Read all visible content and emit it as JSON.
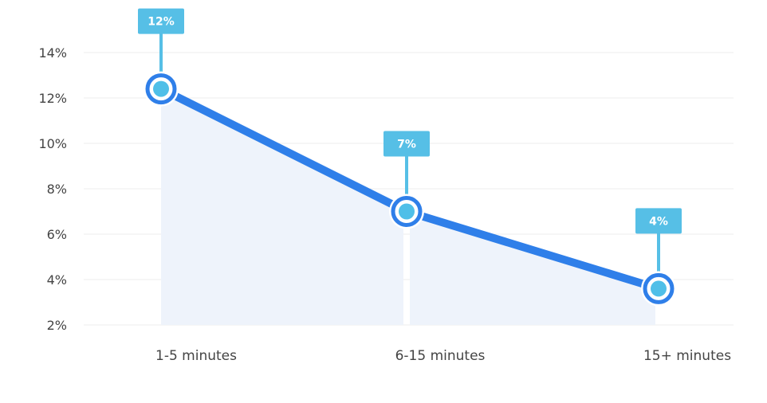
{
  "chart_data": {
    "type": "line",
    "categories": [
      "1-5  minutes",
      "6-15  minutes",
      "15+  minutes"
    ],
    "values": [
      12.4,
      7.0,
      3.6
    ],
    "data_labels": [
      "12%",
      "7%",
      "4%"
    ],
    "yticks": [
      "2%",
      "4%",
      "6%",
      "8%",
      "10%",
      "12%",
      "14%"
    ],
    "ylim": [
      2,
      14
    ],
    "grid": true,
    "area_fill": true,
    "colors": {
      "line": "#2f7fe9",
      "label": "#56bfe6",
      "dot": "#4fbfe8",
      "area": "#eef3fb",
      "grid": "#ececec"
    }
  }
}
